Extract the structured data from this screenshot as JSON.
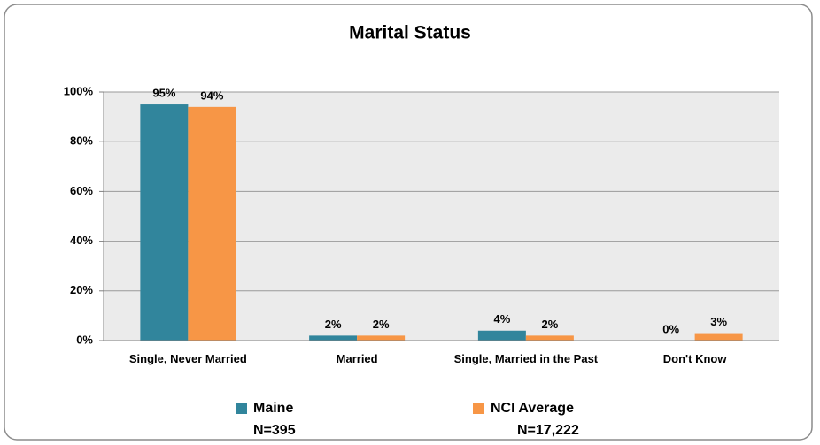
{
  "chart_data": {
    "type": "bar",
    "title": "Marital Status",
    "categories": [
      "Single, Never Married",
      "Married",
      "Single, Married in the Past",
      "Don't Know"
    ],
    "series": [
      {
        "name": "Maine",
        "color": "#31859c",
        "values": [
          95,
          2,
          4,
          0
        ],
        "value_labels": [
          "95%",
          "2%",
          "4%",
          "0%"
        ],
        "n_label": "N=395"
      },
      {
        "name": "NCI Average",
        "color": "#f79646",
        "values": [
          94,
          2,
          2,
          3
        ],
        "value_labels": [
          "94%",
          "2%",
          "2%",
          "3%"
        ],
        "n_label": "N=17,222"
      }
    ],
    "ylim": [
      0,
      100
    ],
    "yticks": [
      {
        "value": 0,
        "label": "0%"
      },
      {
        "value": 20,
        "label": "20%"
      },
      {
        "value": 40,
        "label": "40%"
      },
      {
        "value": 60,
        "label": "60%"
      },
      {
        "value": 80,
        "label": "80%"
      },
      {
        "value": 100,
        "label": "100%"
      }
    ],
    "grid": true,
    "legend": "bottom"
  }
}
